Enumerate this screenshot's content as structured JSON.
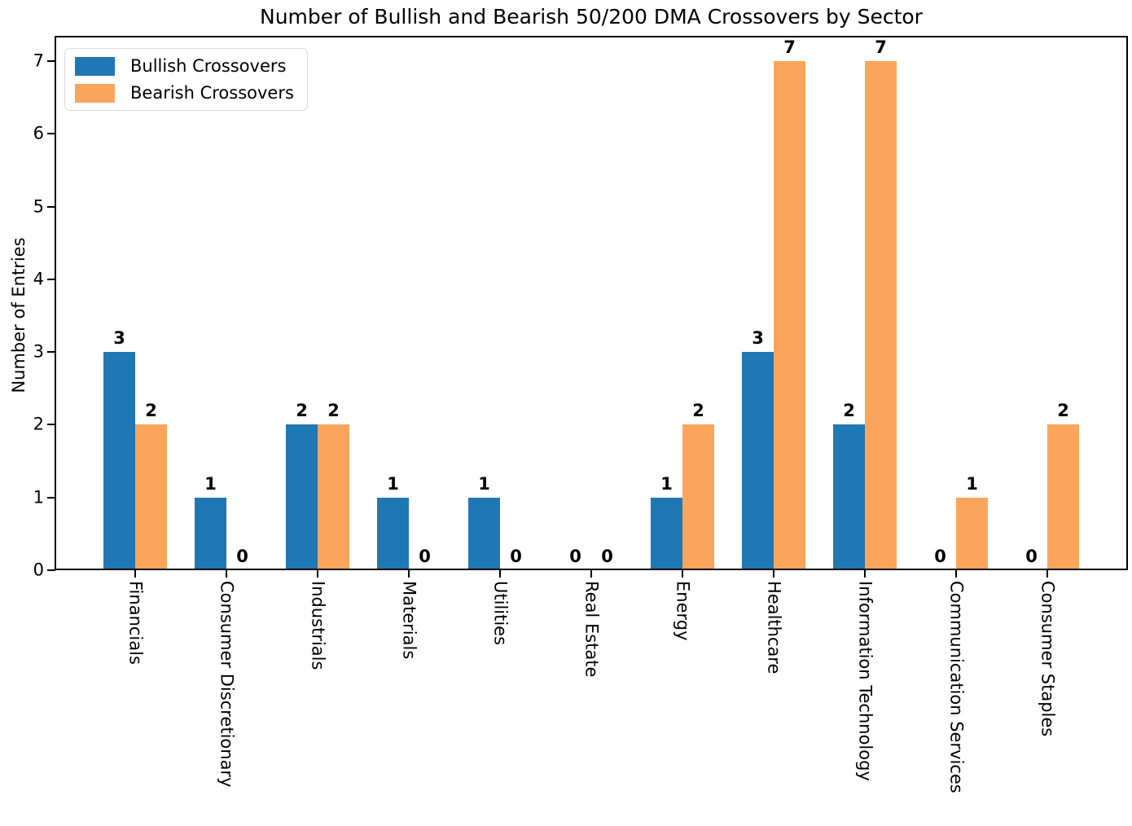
{
  "chart_data": {
    "type": "bar",
    "title": "Number of Bullish and Bearish 50/200 DMA Crossovers by Sector",
    "xlabel": "",
    "ylabel": "Number of Entries",
    "categories": [
      "Financials",
      "Consumer Discretionary",
      "Industrials",
      "Materials",
      "Utilities",
      "Real Estate",
      "Energy",
      "Healthcare",
      "Information Technology",
      "Communication Services",
      "Consumer Staples"
    ],
    "series": [
      {
        "name": "Bullish Crossovers",
        "color": "#1f77b4",
        "values": [
          3,
          1,
          2,
          1,
          1,
          0,
          1,
          3,
          2,
          0,
          0
        ]
      },
      {
        "name": "Bearish Crossovers",
        "color": "#fba55c",
        "values": [
          2,
          0,
          2,
          0,
          0,
          0,
          2,
          7,
          7,
          1,
          2
        ]
      }
    ],
    "yticks": [
      0,
      1,
      2,
      3,
      4,
      5,
      6,
      7
    ],
    "ylim": [
      0,
      7.34
    ],
    "grid": false,
    "legend_position": "upper left",
    "bar_value_labels": true,
    "axis_color": "#000000",
    "legend_border_color": "#d9d9d9"
  }
}
